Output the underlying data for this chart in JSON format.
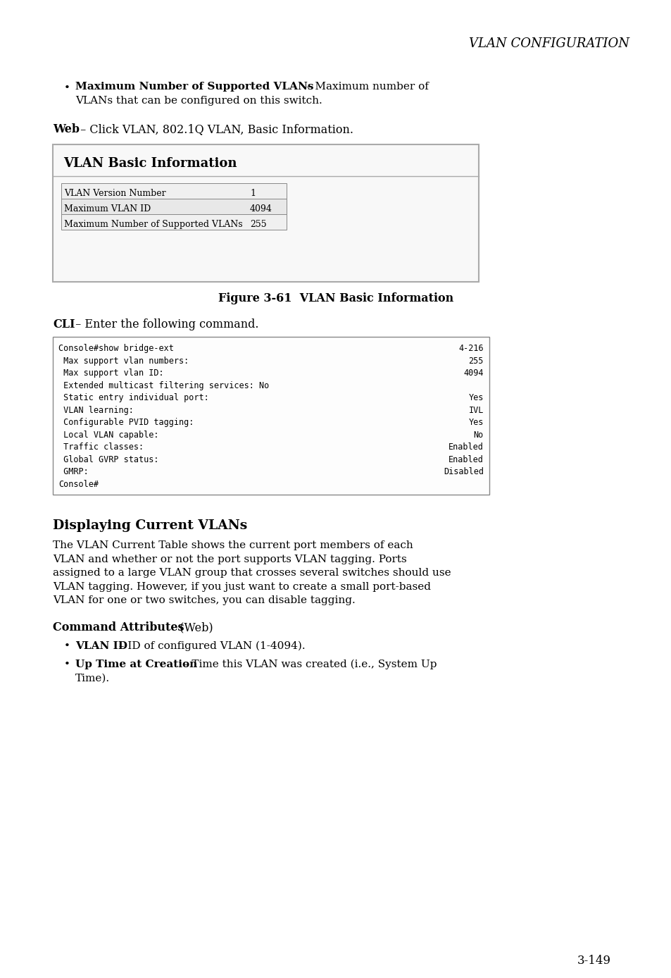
{
  "page_title": "VLAN CONFIGURATION",
  "bullet1_bold": "Maximum Number of Supported VLANs",
  "bullet1_text": " – Maximum number of\nVLANs that can be configured on this switch.",
  "web_label": "Web",
  "web_text": " – Click VLAN, 802.1Q VLAN, Basic Information.",
  "vlan_box_title": "VLAN Basic Information",
  "table_rows": [
    [
      "VLAN Version Number",
      "1"
    ],
    [
      "Maximum VLAN ID",
      "4094"
    ],
    [
      "Maximum Number of Supported VLANs",
      "255"
    ]
  ],
  "fig_caption": "Figure 3-61  VLAN Basic Information",
  "cli_label": "CLI",
  "cli_text": " – Enter the following command.",
  "console_lines": [
    [
      "Console#show bridge-ext",
      "4-216"
    ],
    [
      " Max support vlan numbers:",
      "255"
    ],
    [
      " Max support vlan ID:",
      "4094"
    ],
    [
      " Extended multicast filtering services: No",
      ""
    ],
    [
      " Static entry individual port:",
      "Yes"
    ],
    [
      " VLAN learning:",
      "IVL"
    ],
    [
      " Configurable PVID tagging:",
      "Yes"
    ],
    [
      " Local VLAN capable:",
      "No"
    ],
    [
      " Traffic classes:",
      "Enabled"
    ],
    [
      " Global GVRP status:",
      "Enabled"
    ],
    [
      " GMRP:",
      "Disabled"
    ],
    [
      "Console#",
      ""
    ]
  ],
  "section_title": "Displaying Current VLANs",
  "section_body": "The VLAN Current Table shows the current port members of each\nVLAN and whether or not the port supports VLAN tagging. Ports\nassigned to a large VLAN group that crosses several switches should use\nVLAN tagging. However, if you just want to create a small port-based\nVLAN for one or two switches, you can disable tagging.",
  "cmd_attr_title": "Command Attributes",
  "cmd_attr_paren": " (Web)",
  "bullet_vlanid_bold": "VLAN ID",
  "bullet_vlanid_text": " – ID of configured VLAN (1-4094).",
  "bullet_uptime_bold": "Up Time at Creation",
  "bullet_uptime_text": " – Time this VLAN was created (i.e., System Up\nTime).",
  "page_number": "3-149",
  "bg_color": "#ffffff",
  "text_color": "#000000",
  "box_border_color": "#aaaaaa",
  "box_header_line_color": "#aaaaaa",
  "console_bg": "#ffffff",
  "console_border": "#888888"
}
